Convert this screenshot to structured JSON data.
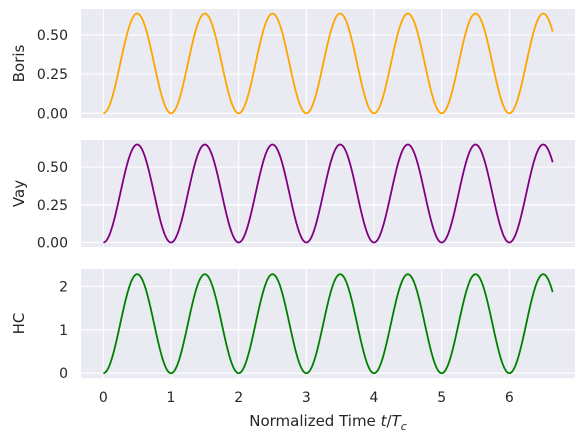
{
  "chart_data": [
    {
      "type": "line",
      "ylabel": "Boris",
      "xlabel": "",
      "color": "#ffa500",
      "xlim": [
        -0.33,
        6.97
      ],
      "ylim": [
        -0.03,
        0.665
      ],
      "xticks": [
        0,
        1,
        2,
        3,
        4,
        5,
        6
      ],
      "yticks": [
        0.0,
        0.25,
        0.5
      ],
      "ytick_labels": [
        "0.00",
        "0.25",
        "0.50"
      ],
      "show_xtick_labels": false,
      "series": [
        {
          "amplitude": 0.636,
          "period": 1.0,
          "t_max": 6.64,
          "x": [
            0,
            0.25,
            0.5,
            0.75,
            1,
            1.25,
            1.5,
            1.75,
            2,
            2.25,
            2.5,
            2.75,
            3,
            3.25,
            3.5,
            3.75,
            4,
            4.25,
            4.5,
            4.75,
            5,
            5.25,
            5.5,
            5.75,
            6,
            6.25,
            6.5,
            6.64
          ],
          "y": [
            0.0,
            0.318,
            0.636,
            0.318,
            0.0,
            0.318,
            0.636,
            0.318,
            0.0,
            0.318,
            0.636,
            0.318,
            0.0,
            0.318,
            0.636,
            0.318,
            0.0,
            0.318,
            0.636,
            0.318,
            0.0,
            0.318,
            0.636,
            0.318,
            0.0,
            0.318,
            0.636,
            0.58
          ]
        }
      ]
    },
    {
      "type": "line",
      "ylabel": "Vay",
      "xlabel": "",
      "color": "#800080",
      "xlim": [
        -0.33,
        6.97
      ],
      "ylim": [
        -0.03,
        0.68
      ],
      "xticks": [
        0,
        1,
        2,
        3,
        4,
        5,
        6
      ],
      "yticks": [
        0.0,
        0.25,
        0.5
      ],
      "ytick_labels": [
        "0.00",
        "0.25",
        "0.50"
      ],
      "show_xtick_labels": false,
      "series": [
        {
          "amplitude": 0.65,
          "period": 1.0,
          "t_max": 6.64,
          "x": [
            0,
            0.25,
            0.5,
            0.75,
            1,
            1.25,
            1.5,
            1.75,
            2,
            2.25,
            2.5,
            2.75,
            3,
            3.25,
            3.5,
            3.75,
            4,
            4.25,
            4.5,
            4.75,
            5,
            5.25,
            5.5,
            5.75,
            6,
            6.25,
            6.5,
            6.64
          ],
          "y": [
            0.0,
            0.325,
            0.65,
            0.325,
            0.0,
            0.325,
            0.65,
            0.325,
            0.0,
            0.325,
            0.65,
            0.325,
            0.0,
            0.325,
            0.65,
            0.325,
            0.0,
            0.325,
            0.65,
            0.325,
            0.0,
            0.325,
            0.65,
            0.325,
            0.0,
            0.325,
            0.65,
            0.59
          ]
        }
      ]
    },
    {
      "type": "line",
      "ylabel": "HC",
      "xlabel": "Normalized Time t/T_c",
      "xlabel_parts": {
        "text": "Normalized Time ",
        "var_t": "t",
        "slash": "/",
        "var_T": "T",
        "sub": "c"
      },
      "color": "#008000",
      "xlim": [
        -0.33,
        6.97
      ],
      "ylim": [
        -0.11,
        2.4
      ],
      "xticks": [
        0,
        1,
        2,
        3,
        4,
        5,
        6
      ],
      "xtick_labels": [
        "0",
        "1",
        "2",
        "3",
        "4",
        "5",
        "6"
      ],
      "yticks": [
        0,
        1,
        2
      ],
      "ytick_labels": [
        "0",
        "1",
        "2"
      ],
      "show_xtick_labels": true,
      "series": [
        {
          "amplitude": 2.28,
          "period": 1.0,
          "t_max": 6.64,
          "x": [
            0,
            0.25,
            0.5,
            0.75,
            1,
            1.25,
            1.5,
            1.75,
            2,
            2.25,
            2.5,
            2.75,
            3,
            3.25,
            3.5,
            3.75,
            4,
            4.25,
            4.5,
            4.75,
            5,
            5.25,
            5.5,
            5.75,
            6,
            6.25,
            6.5,
            6.64
          ],
          "y": [
            0.0,
            1.14,
            2.28,
            1.14,
            0.0,
            1.14,
            2.28,
            1.14,
            0.0,
            1.14,
            2.28,
            1.14,
            0.0,
            1.14,
            2.28,
            1.14,
            0.0,
            1.14,
            2.28,
            1.14,
            0.0,
            1.14,
            2.28,
            1.14,
            0.0,
            1.14,
            2.28,
            2.07
          ]
        }
      ]
    }
  ],
  "style": {
    "panel_background": "#eaeaf2",
    "grid_color": "#ffffff",
    "grid": true
  }
}
